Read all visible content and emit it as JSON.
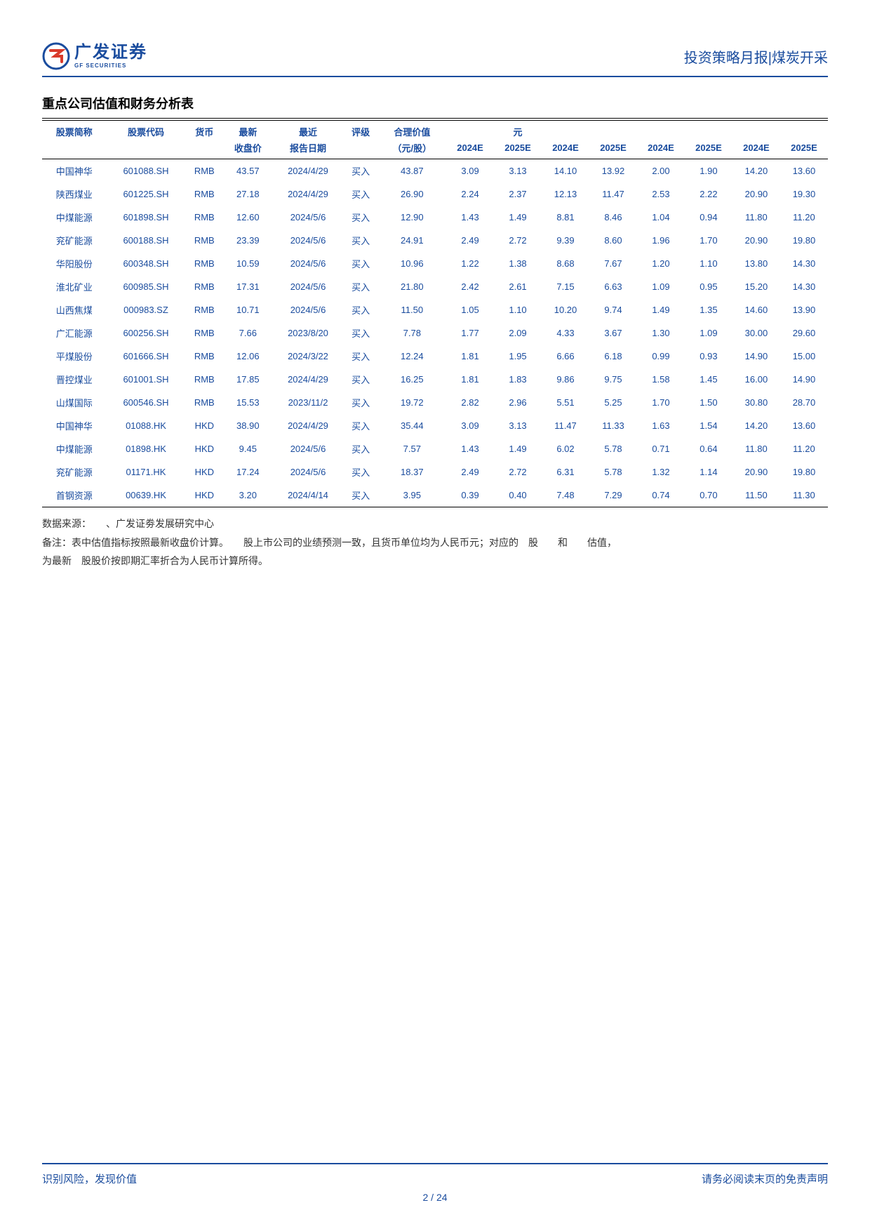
{
  "header": {
    "logo_cn": "广发证券",
    "logo_en": "GF SECURITIES",
    "right_text": "投资策略月报|煤炭开采"
  },
  "section_title": "重点公司估值和财务分析表",
  "table": {
    "header_row1": [
      "股票简称",
      "股票代码",
      "货币",
      "最新",
      "最近",
      "评级",
      "合理价值",
      "",
      "元",
      "",
      "",
      "",
      "",
      ""
    ],
    "header_row2": [
      "",
      "",
      "",
      "收盘价",
      "报告日期",
      "",
      "（元/股）",
      "2024E",
      "2025E",
      "2024E",
      "2025E",
      "2024E",
      "2025E",
      "2024E",
      "2025E"
    ],
    "rows": [
      [
        "中国神华",
        "601088.SH",
        "RMB",
        "43.57",
        "2024/4/29",
        "买入",
        "43.87",
        "3.09",
        "3.13",
        "14.10",
        "13.92",
        "2.00",
        "1.90",
        "14.20",
        "13.60"
      ],
      [
        "陕西煤业",
        "601225.SH",
        "RMB",
        "27.18",
        "2024/4/29",
        "买入",
        "26.90",
        "2.24",
        "2.37",
        "12.13",
        "11.47",
        "2.53",
        "2.22",
        "20.90",
        "19.30"
      ],
      [
        "中煤能源",
        "601898.SH",
        "RMB",
        "12.60",
        "2024/5/6",
        "买入",
        "12.90",
        "1.43",
        "1.49",
        "8.81",
        "8.46",
        "1.04",
        "0.94",
        "11.80",
        "11.20"
      ],
      [
        "兖矿能源",
        "600188.SH",
        "RMB",
        "23.39",
        "2024/5/6",
        "买入",
        "24.91",
        "2.49",
        "2.72",
        "9.39",
        "8.60",
        "1.96",
        "1.70",
        "20.90",
        "19.80"
      ],
      [
        "华阳股份",
        "600348.SH",
        "RMB",
        "10.59",
        "2024/5/6",
        "买入",
        "10.96",
        "1.22",
        "1.38",
        "8.68",
        "7.67",
        "1.20",
        "1.10",
        "13.80",
        "14.30"
      ],
      [
        "淮北矿业",
        "600985.SH",
        "RMB",
        "17.31",
        "2024/5/6",
        "买入",
        "21.80",
        "2.42",
        "2.61",
        "7.15",
        "6.63",
        "1.09",
        "0.95",
        "15.20",
        "14.30"
      ],
      [
        "山西焦煤",
        "000983.SZ",
        "RMB",
        "10.71",
        "2024/5/6",
        "买入",
        "11.50",
        "1.05",
        "1.10",
        "10.20",
        "9.74",
        "1.49",
        "1.35",
        "14.60",
        "13.90"
      ],
      [
        "广汇能源",
        "600256.SH",
        "RMB",
        "7.66",
        "2023/8/20",
        "买入",
        "7.78",
        "1.77",
        "2.09",
        "4.33",
        "3.67",
        "1.30",
        "1.09",
        "30.00",
        "29.60"
      ],
      [
        "平煤股份",
        "601666.SH",
        "RMB",
        "12.06",
        "2024/3/22",
        "买入",
        "12.24",
        "1.81",
        "1.95",
        "6.66",
        "6.18",
        "0.99",
        "0.93",
        "14.90",
        "15.00"
      ],
      [
        "晋控煤业",
        "601001.SH",
        "RMB",
        "17.85",
        "2024/4/29",
        "买入",
        "16.25",
        "1.81",
        "1.83",
        "9.86",
        "9.75",
        "1.58",
        "1.45",
        "16.00",
        "14.90"
      ],
      [
        "山煤国际",
        "600546.SH",
        "RMB",
        "15.53",
        "2023/11/2",
        "买入",
        "19.72",
        "2.82",
        "2.96",
        "5.51",
        "5.25",
        "1.70",
        "1.50",
        "30.80",
        "28.70"
      ],
      [
        "中国神华",
        "01088.HK",
        "HKD",
        "38.90",
        "2024/4/29",
        "买入",
        "35.44",
        "3.09",
        "3.13",
        "11.47",
        "11.33",
        "1.63",
        "1.54",
        "14.20",
        "13.60"
      ],
      [
        "中煤能源",
        "01898.HK",
        "HKD",
        "9.45",
        "2024/5/6",
        "买入",
        "7.57",
        "1.43",
        "1.49",
        "6.02",
        "5.78",
        "0.71",
        "0.64",
        "11.80",
        "11.20"
      ],
      [
        "兖矿能源",
        "01171.HK",
        "HKD",
        "17.24",
        "2024/5/6",
        "买入",
        "18.37",
        "2.49",
        "2.72",
        "6.31",
        "5.78",
        "1.32",
        "1.14",
        "20.90",
        "19.80"
      ],
      [
        "首钢资源",
        "00639.HK",
        "HKD",
        "3.20",
        "2024/4/14",
        "买入",
        "3.95",
        "0.39",
        "0.40",
        "7.48",
        "7.29",
        "0.74",
        "0.70",
        "11.50",
        "11.30"
      ]
    ]
  },
  "notes": {
    "line1": "数据来源：　　、广发证劵发展研究中心",
    "line2": "备注：表中估值指标按照最新收盘价计算。　　股上市公司的业绩预测一致，且货币单位均为人民币元；对应的　股　　和　　估值，",
    "line3": "为最新　股股价按即期汇率折合为人民币计算所得。"
  },
  "footer": {
    "left": "识别风险，发现价值",
    "right": "请务必阅读末页的免责声明",
    "page": "2 / 24"
  },
  "colors": {
    "brand": "#1a4c9e",
    "text": "#333333",
    "black": "#000000"
  }
}
